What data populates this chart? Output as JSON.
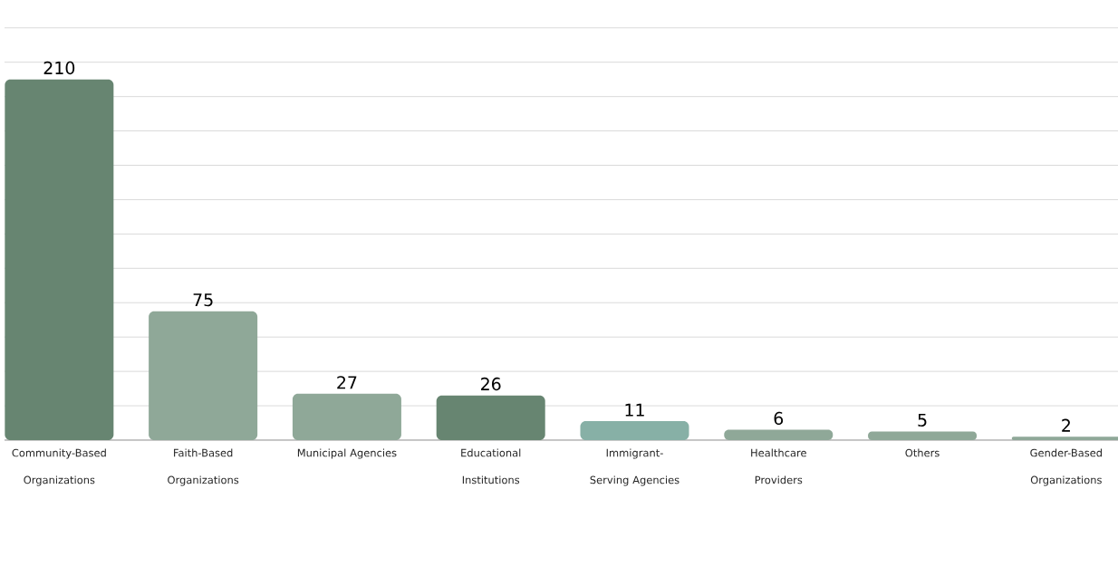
{
  "chart_data": {
    "type": "bar",
    "categories": [
      "Community-Based Organizations",
      "Faith-Based Organizations",
      "Municipal Agencies",
      "Educational Institutions",
      "Immigrant-Serving Agencies",
      "Healthcare Providers",
      "Others",
      "Gender-Based Organizations"
    ],
    "values": [
      210,
      75,
      27,
      26,
      11,
      6,
      5,
      2
    ],
    "colors": [
      "#678571",
      "#8fa898",
      "#8fa898",
      "#678571",
      "#87b0a6",
      "#8fa898",
      "#8fa898",
      "#8fa898"
    ],
    "grid": "y",
    "data_labels": true,
    "tick_labels": "x"
  }
}
